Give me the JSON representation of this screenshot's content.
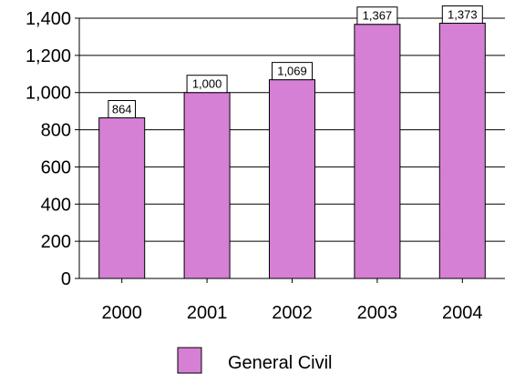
{
  "chart_data": {
    "type": "bar",
    "categories": [
      "2000",
      "2001",
      "2002",
      "2003",
      "2004"
    ],
    "series": [
      {
        "name": "General Civil",
        "values": [
          864,
          1000,
          1069,
          1367,
          1373
        ],
        "data_labels": [
          "864",
          "1,000",
          "1,069",
          "1,367",
          "1,373"
        ],
        "color": "#d580d5"
      }
    ],
    "y_ticks": [
      "0",
      "200",
      "400",
      "600",
      "800",
      "1,000",
      "1,200",
      "1,400"
    ],
    "ylim": [
      0,
      1400
    ],
    "grid": true,
    "legend_position": "bottom-center",
    "title": "",
    "xlabel": "",
    "ylabel": ""
  }
}
